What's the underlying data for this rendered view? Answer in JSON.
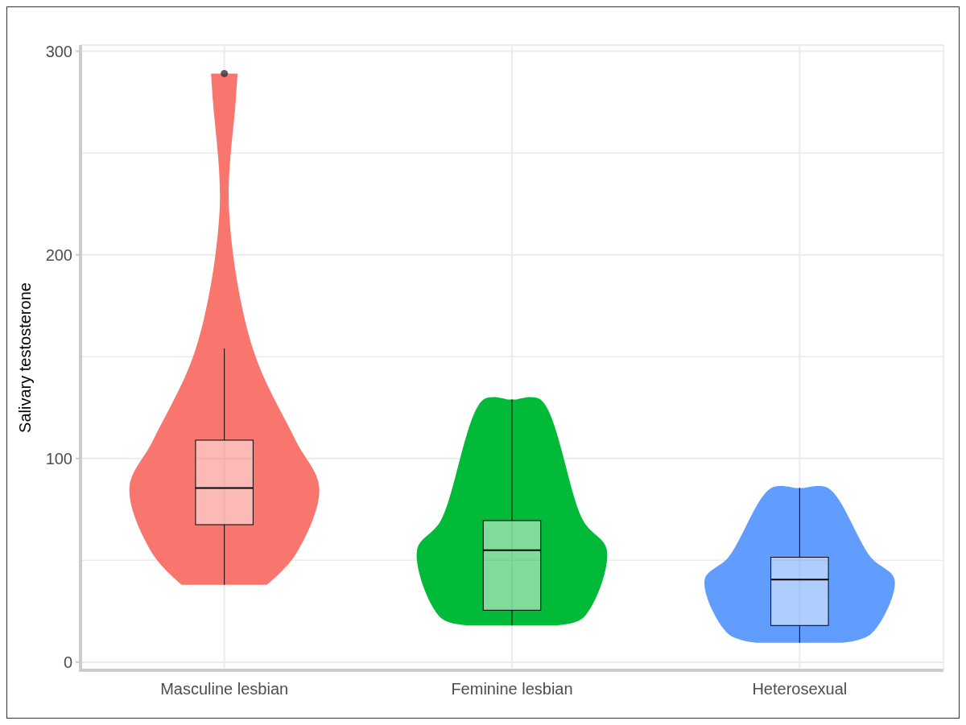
{
  "chart_data": {
    "type": "box",
    "ylabel": "Salivary testosterone",
    "categories": [
      "Masculine lesbian",
      "Feminine lesbian",
      "Heterosexual"
    ],
    "colors": [
      "#f8766d",
      "#00ba38",
      "#619cff"
    ],
    "boxes": [
      {
        "low": 38,
        "q1": 67.5,
        "median": 85.5,
        "q3": 109,
        "high": 154,
        "outliers": [
          289
        ]
      },
      {
        "low": 18,
        "q1": 25.5,
        "median": 55,
        "q3": 69.5,
        "high": 129
      },
      {
        "low": 9.5,
        "q1": 18,
        "median": 40.5,
        "q3": 51.5,
        "high": 85.5
      }
    ],
    "ylim": [
      -4,
      303
    ],
    "yticks": [
      0,
      100,
      200,
      300
    ],
    "grid": true
  }
}
